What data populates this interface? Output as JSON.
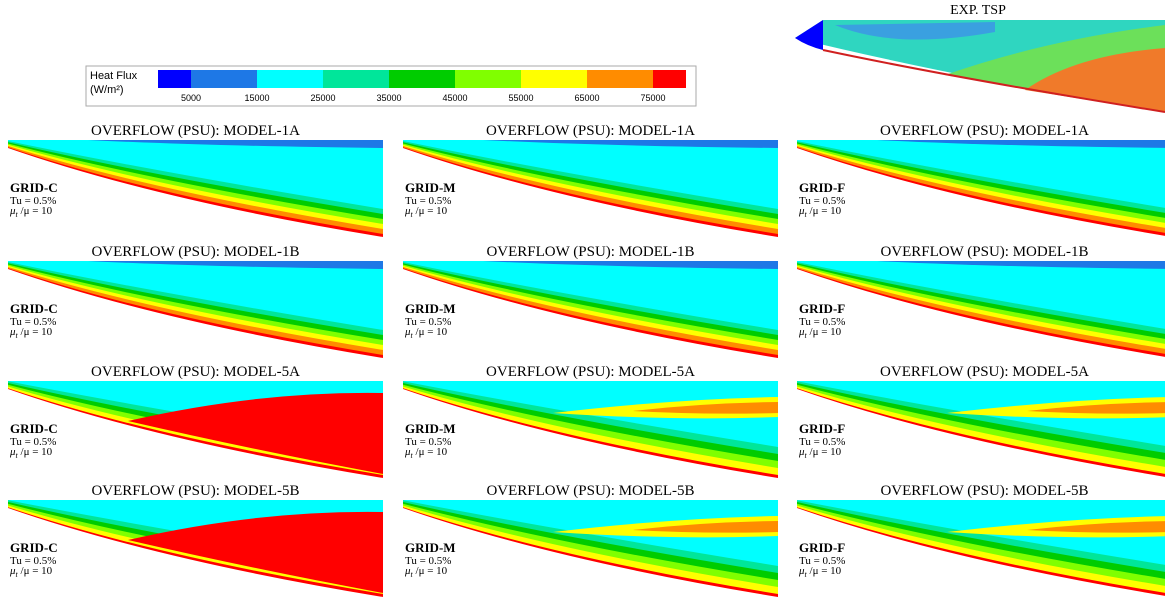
{
  "exp_panel": {
    "title": "EXP. TSP"
  },
  "colorbar": {
    "title": "Heat Flux",
    "unit": "(W/m²)",
    "ticks": [
      "5000",
      "15000",
      "25000",
      "35000",
      "45000",
      "55000",
      "65000",
      "75000"
    ]
  },
  "panels": [
    {
      "title": "OVERFLOW (PSU): MODEL-1A",
      "grid": "GRID-C",
      "tu": "Tu = 0.5%",
      "mu": {
        "symbol": "μ",
        "sub": "t",
        "rest": " /μ = 10"
      }
    },
    {
      "title": "OVERFLOW (PSU): MODEL-1A",
      "grid": "GRID-M",
      "tu": "Tu = 0.5%",
      "mu": {
        "symbol": "μ",
        "sub": "t",
        "rest": " /μ = 10"
      }
    },
    {
      "title": "OVERFLOW (PSU): MODEL-1A",
      "grid": "GRID-F",
      "tu": "Tu = 0.5%",
      "mu": {
        "symbol": "μ",
        "sub": "t",
        "rest": " /μ = 10"
      }
    },
    {
      "title": "OVERFLOW (PSU): MODEL-1B",
      "grid": "GRID-C",
      "tu": "Tu = 0.5%",
      "mu": {
        "symbol": "μ",
        "sub": "t",
        "rest": " /μ = 10"
      }
    },
    {
      "title": "OVERFLOW (PSU): MODEL-1B",
      "grid": "GRID-M",
      "tu": "Tu = 0.5%",
      "mu": {
        "symbol": "μ",
        "sub": "t",
        "rest": " /μ = 10"
      }
    },
    {
      "title": "OVERFLOW (PSU): MODEL-1B",
      "grid": "GRID-F",
      "tu": "Tu = 0.5%",
      "mu": {
        "symbol": "μ",
        "sub": "t",
        "rest": " /μ = 10"
      }
    },
    {
      "title": "OVERFLOW (PSU): MODEL-5A",
      "grid": "GRID-C",
      "tu": "Tu = 0.5%",
      "mu": {
        "symbol": "μ",
        "sub": "t",
        "rest": " /μ = 10"
      }
    },
    {
      "title": "OVERFLOW (PSU): MODEL-5A",
      "grid": "GRID-M",
      "tu": "Tu = 0.5%",
      "mu": {
        "symbol": "μ",
        "sub": "t",
        "rest": " /μ = 10"
      }
    },
    {
      "title": "OVERFLOW (PSU): MODEL-5A",
      "grid": "GRID-F",
      "tu": "Tu = 0.5%",
      "mu": {
        "symbol": "μ",
        "sub": "t",
        "rest": " /μ = 10"
      }
    },
    {
      "title": "OVERFLOW (PSU): MODEL-5B",
      "grid": "GRID-C",
      "tu": "Tu = 0.5%",
      "mu": {
        "symbol": "μ",
        "sub": "t",
        "rest": " /μ = 10"
      }
    },
    {
      "title": "OVERFLOW (PSU): MODEL-5B",
      "grid": "GRID-M",
      "tu": "Tu = 0.5%",
      "mu": {
        "symbol": "μ",
        "sub": "t",
        "rest": " /μ = 10"
      }
    },
    {
      "title": "OVERFLOW (PSU): MODEL-5B",
      "grid": "GRID-F",
      "tu": "Tu = 0.5%",
      "mu": {
        "symbol": "μ",
        "sub": "t",
        "rest": " /μ = 10"
      }
    }
  ]
}
